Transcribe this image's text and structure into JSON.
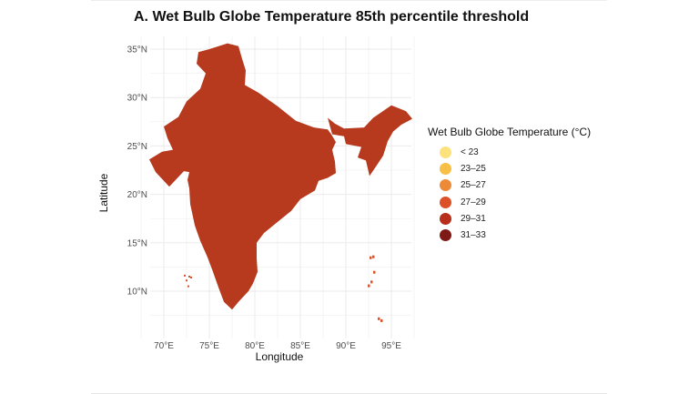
{
  "title": "A. Wet Bulb Globe Temperature 85th percentile threshold",
  "map": {
    "xlabel": "Longitude",
    "ylabel": "Latitude",
    "x_ticks": [
      "70°E",
      "75°E",
      "80°E",
      "85°E",
      "90°E",
      "95°E"
    ],
    "x_tick_values": [
      70,
      75,
      80,
      85,
      90,
      95
    ],
    "y_ticks": [
      "10°N",
      "15°N",
      "20°N",
      "25°N",
      "30°N",
      "35°N"
    ],
    "y_tick_values": [
      10,
      15,
      20,
      25,
      30,
      35
    ],
    "region": "India",
    "no_data_color": "#a8a8a8",
    "grid": true
  },
  "legend": {
    "title": "Wet Bulb Globe Temperature (°C)",
    "items": [
      {
        "label": "< 23",
        "color": "#fbe27c"
      },
      {
        "label": "23–25",
        "color": "#f8bf46"
      },
      {
        "label": "25–27",
        "color": "#ec8a37"
      },
      {
        "label": "27–29",
        "color": "#dc5128"
      },
      {
        "label": "29–31",
        "color": "#b72e1c"
      },
      {
        "label": "31–33",
        "color": "#7e1915"
      }
    ]
  }
}
